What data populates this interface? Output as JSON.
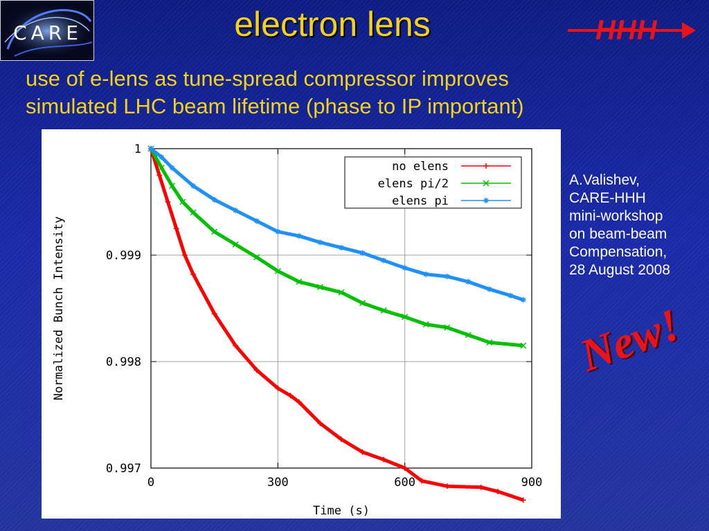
{
  "logo": {
    "text": "CARE"
  },
  "header": {
    "title": "electron lens",
    "brand": "HHH"
  },
  "subtitle": {
    "line1": "use of e-lens as tune-spread compressor improves",
    "line2": "simulated LHC beam lifetime (phase to IP important)"
  },
  "credit": {
    "lines": [
      "A.Valishev,",
      "CARE-HHH",
      "mini-workshop",
      "on beam-beam",
      "Compensation,",
      "28 August 2008"
    ]
  },
  "stamp": {
    "text": "New!"
  },
  "colors": {
    "title": "#f2d21c",
    "brand": "#e8141c",
    "no_elens": "#ff0000",
    "elens_pi2": "#00c000",
    "elens_pi": "#1e90ff"
  },
  "chart_data": {
    "type": "line",
    "title": "",
    "xlabel": "Time (s)",
    "ylabel": "Normalized Bunch Intensity",
    "xlim": [
      0,
      900
    ],
    "ylim": [
      0.997,
      1.0
    ],
    "xticks": [
      0,
      300,
      600,
      900
    ],
    "xtick_labels": [
      "0",
      "300",
      "600",
      "900"
    ],
    "yticks": [
      0.997,
      0.998,
      0.999,
      1.0
    ],
    "ytick_labels": [
      "0.997",
      "0.998",
      "0.999",
      "1"
    ],
    "grid": true,
    "legend_position": "top-right",
    "series": [
      {
        "name": "no elens",
        "color": "#ff0000",
        "marker": "+",
        "points": [
          [
            0,
            1.0
          ],
          [
            20,
            0.99975
          ],
          [
            40,
            0.9995
          ],
          [
            60,
            0.99925
          ],
          [
            80,
            0.999
          ],
          [
            100,
            0.99882
          ],
          [
            150,
            0.99845
          ],
          [
            200,
            0.99815
          ],
          [
            250,
            0.99792
          ],
          [
            300,
            0.99775
          ],
          [
            330,
            0.99768
          ],
          [
            350,
            0.99762
          ],
          [
            400,
            0.99742
          ],
          [
            450,
            0.99727
          ],
          [
            500,
            0.99715
          ],
          [
            550,
            0.99708
          ],
          [
            600,
            0.997
          ],
          [
            640,
            0.99688
          ],
          [
            700,
            0.99683
          ],
          [
            780,
            0.99682
          ],
          [
            820,
            0.99678
          ],
          [
            880,
            0.9967
          ]
        ]
      },
      {
        "name": "elens pi/2",
        "color": "#00c000",
        "marker": "x",
        "points": [
          [
            0,
            1.0
          ],
          [
            25,
            0.99982
          ],
          [
            50,
            0.99965
          ],
          [
            75,
            0.9995
          ],
          [
            100,
            0.9994
          ],
          [
            150,
            0.99922
          ],
          [
            200,
            0.9991
          ],
          [
            250,
            0.99898
          ],
          [
            300,
            0.99885
          ],
          [
            350,
            0.99875
          ],
          [
            400,
            0.9987
          ],
          [
            450,
            0.99865
          ],
          [
            500,
            0.99855
          ],
          [
            550,
            0.99848
          ],
          [
            600,
            0.99842
          ],
          [
            650,
            0.99835
          ],
          [
            700,
            0.99832
          ],
          [
            750,
            0.99825
          ],
          [
            800,
            0.99818
          ],
          [
            880,
            0.99815
          ]
        ]
      },
      {
        "name": "elens pi",
        "color": "#1e90ff",
        "marker": "*",
        "points": [
          [
            0,
            1.0
          ],
          [
            25,
            0.99992
          ],
          [
            50,
            0.99982
          ],
          [
            100,
            0.99965
          ],
          [
            150,
            0.99952
          ],
          [
            200,
            0.99942
          ],
          [
            250,
            0.99932
          ],
          [
            300,
            0.99922
          ],
          [
            350,
            0.99918
          ],
          [
            400,
            0.99912
          ],
          [
            450,
            0.99907
          ],
          [
            500,
            0.99902
          ],
          [
            550,
            0.99895
          ],
          [
            600,
            0.99888
          ],
          [
            650,
            0.99882
          ],
          [
            700,
            0.9988
          ],
          [
            750,
            0.99875
          ],
          [
            800,
            0.99868
          ],
          [
            850,
            0.99862
          ],
          [
            880,
            0.99858
          ]
        ]
      }
    ]
  }
}
